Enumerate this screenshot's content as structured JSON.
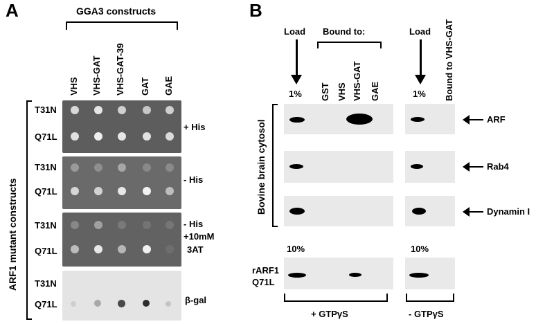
{
  "panel_a": {
    "letter": "A",
    "header": "GGA3 constructs",
    "columns": [
      "VHS",
      "VHS-GAT",
      "VHS-GAT-39",
      "GAT",
      "GAE"
    ],
    "side_label": "ARF1 mutant constructs",
    "plates": [
      {
        "rows": [
          "T31N",
          "Q71L"
        ],
        "condition_lines": [
          "+ His"
        ]
      },
      {
        "rows": [
          "T31N",
          "Q71L"
        ],
        "condition_lines": [
          "- His"
        ]
      },
      {
        "rows": [
          "T31N",
          "Q71L"
        ],
        "condition_lines": [
          "- His",
          "+10mM",
          "3AT"
        ]
      },
      {
        "rows": [
          "T31N",
          "Q71L"
        ],
        "condition_lines": [
          "β-gal"
        ]
      }
    ]
  },
  "panel_b": {
    "letter": "B",
    "load_label": "Load",
    "bound_to_label": "Bound to:",
    "lanes": [
      "GST",
      "VHS",
      "VHS-GAT",
      "GAE"
    ],
    "pct_top": "1%",
    "pct_bottom": "10%",
    "right_load_label": "Load",
    "right_bound_label": "Bound to VHS-GAT",
    "cytosol_label": "Bovine brain cytosol",
    "blot_labels": [
      "ARF",
      "Rab4",
      "Dynamin I"
    ],
    "rarf_line1": "rARF1",
    "rarf_line2": "Q71L",
    "gtp_plus": "+ GTPγS",
    "gtp_minus": "- GTPγS"
  }
}
